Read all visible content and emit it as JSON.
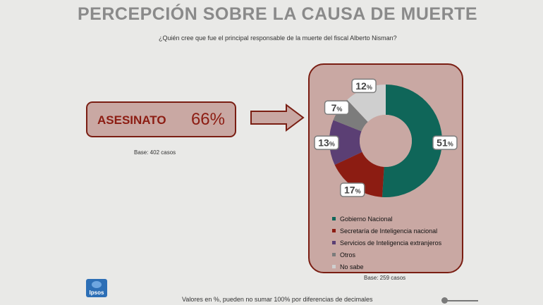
{
  "title": "PERCEPCIÓN SOBRE LA CAUSA DE MUERTE",
  "subtitle": "¿Quién cree que fue el principal responsable de la muerte del fiscal Alberto Nisman?",
  "highlight": {
    "label": "ASESINATO",
    "value": "66%"
  },
  "base_left": "Base: 402 casos",
  "base_right": "Base: 259 casos",
  "footnote": "Valores en %, pueden no sumar 100% por diferencias de decimales",
  "logo_text": "Ipsos",
  "colors": {
    "accent": "#7a1e13",
    "panel": "#c9a8a3",
    "title": "#8a8a8a"
  },
  "chart_data": {
    "type": "pie",
    "donut": true,
    "percent_sign": "%",
    "series": [
      {
        "name": "Gobierno Nacional",
        "value": 51,
        "label": "51",
        "color": "#0f6659"
      },
      {
        "name": "Secretaría de Inteligencia nacional",
        "value": 17,
        "label": "17",
        "color": "#8c1c12"
      },
      {
        "name": "Servicios de Inteligencia extranjeros",
        "value": 13,
        "label": "13",
        "color": "#5b3f74"
      },
      {
        "name": "Otros",
        "value": 7,
        "label": "7",
        "color": "#7c7c7c"
      },
      {
        "name": "No sabe",
        "value": 12,
        "label": "12",
        "color": "#cfcfcf"
      }
    ],
    "legend_position": "bottom"
  }
}
